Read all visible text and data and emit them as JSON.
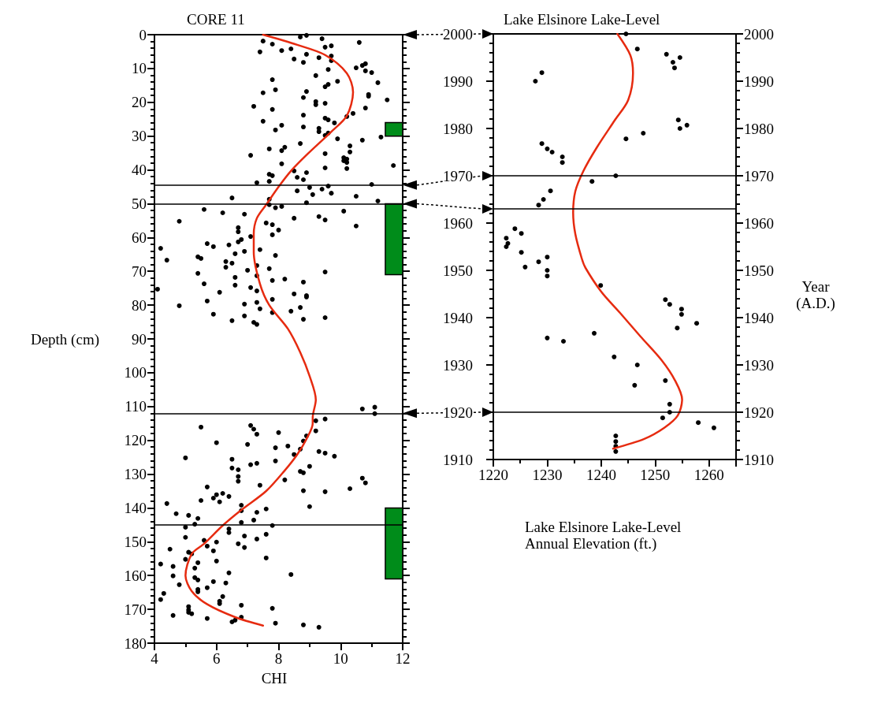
{
  "chart_data": [
    {
      "type": "scatter",
      "title": "CORE 11",
      "xlabel": "CHI",
      "ylabel": "Depth (cm)",
      "xlim": [
        4,
        12
      ],
      "xticks": [
        4,
        6,
        8,
        10,
        12
      ],
      "ylim": [
        180,
        0
      ],
      "yticks": [
        0,
        10,
        20,
        30,
        40,
        50,
        60,
        70,
        80,
        90,
        100,
        110,
        120,
        130,
        140,
        150,
        160,
        170,
        180
      ],
      "marker": "circle",
      "series": [
        {
          "type": "scatter",
          "color": "#000000",
          "x": [
            8.7,
            8.9,
            9.4,
            10.6,
            7.5,
            7.8,
            9.5,
            9.7,
            8.1,
            8.4,
            7.4,
            8.9,
            9.7,
            9.3,
            8.5,
            8.8,
            9.7,
            9.6,
            10.5,
            10.7,
            10.8,
            10.8,
            11.0,
            9.2,
            9.9,
            11.2,
            7.8,
            9.6,
            9.5,
            7.9,
            8.9,
            7.5,
            10.9,
            10.9,
            8.8,
            11.5,
            9.2,
            9.2,
            9.5,
            7.2,
            10.8,
            7.8,
            10.4,
            8.8,
            10.2,
            9.5,
            9.6,
            7.5,
            8.1,
            9.8,
            8.8,
            7.9,
            9.3,
            9.3,
            9.5,
            9.6,
            9.9,
            10.7,
            11.3,
            8.7,
            10.3,
            8.2,
            7.7,
            8.1,
            10.3,
            9.5,
            7.1,
            10.1,
            10.2,
            10.1,
            10.2,
            8.1,
            9.5,
            10.2,
            11.7,
            8.5,
            8.9,
            7.7,
            7.8,
            8.6,
            8.8,
            7.7,
            7.3,
            11.0,
            9.6,
            8.6,
            9.0,
            9.4,
            9.7,
            9.1,
            6.5,
            10.5,
            7.7,
            11.2,
            8.9,
            7.7,
            7.9,
            8.1,
            5.6,
            6.2,
            6.9,
            10.1,
            8.5,
            9.3,
            9.5,
            4.8,
            7.6,
            7.8,
            10.5,
            6.7,
            6.7,
            8.0,
            7.8,
            7.1,
            5.7,
            5.9,
            6.4,
            6.7,
            6.8,
            4.2,
            6.9,
            7.4,
            4.4,
            5.4,
            5.5,
            6.6,
            7.9,
            6.3,
            6.5,
            6.3,
            7.0,
            7.3,
            7.7,
            5.4,
            7.3,
            6.6,
            9.5,
            7.8,
            8.2,
            8.8,
            5.6,
            6.6,
            7.1,
            4.1,
            6.1,
            7.3,
            8.5,
            8.9,
            8.9,
            7.8,
            5.7,
            7.3,
            4.8,
            6.9,
            7.4,
            8.7,
            8.4,
            7.8,
            5.9,
            6.9,
            8.8,
            9.5,
            6.5,
            7.2,
            7.3,
            10.7,
            11.1,
            11.1,
            9.2,
            9.5,
            5.5,
            7.1,
            7.2,
            9.2,
            7.3,
            8.0,
            8.9,
            8.8,
            6.0,
            7.0,
            7.9,
            8.3,
            8.7,
            9.3,
            9.5,
            9.8,
            8.5,
            5.0,
            6.5,
            7.1,
            7.3,
            7.9,
            6.5,
            6.7,
            9.0,
            8.7,
            8.8,
            6.7,
            6.7,
            8.2,
            10.7,
            10.8,
            5.7,
            7.4,
            10.3,
            8.8,
            9.5,
            6.0,
            6.2,
            6.4,
            5.9,
            6.1,
            5.5,
            4.4,
            6.8,
            6.8,
            4.7,
            5.1,
            5.4,
            9.0,
            7.6,
            7.3,
            7.2,
            6.8,
            5.3,
            5.0,
            7.8,
            6.4,
            6.4,
            7.6,
            6.9,
            5.0,
            7.3,
            5.6,
            6.0,
            5.7,
            6.7,
            6.9,
            4.5,
            5.9,
            5.1,
            5.2,
            7.6,
            5.0,
            6.0,
            5.4,
            4.2,
            4.6,
            5.3,
            6.4,
            8.4,
            4.6,
            5.3,
            5.4,
            5.9,
            6.3,
            4.8,
            5.7,
            5.4,
            5.4,
            4.3,
            6.2,
            4.2,
            6.1,
            6.1,
            6.8,
            5.1,
            7.8,
            5.1,
            5.1,
            5.2,
            4.6,
            6.8,
            5.7,
            6.6,
            6.5,
            7.9,
            8.8,
            9.3
          ],
          "values": [
            0.7,
            0.2,
            1.2,
            2.3,
            1.9,
            2.8,
            3.7,
            3.3,
            4.7,
            4.2,
            5.1,
            5.8,
            6.3,
            6.8,
            7.2,
            8.2,
            7.7,
            10.3,
            9.8,
            9.1,
            8.6,
            10.7,
            11.2,
            12.1,
            13.8,
            14.2,
            13.3,
            14.7,
            15.4,
            16.3,
            16.8,
            17.2,
            17.7,
            18.2,
            18.6,
            19.3,
            19.8,
            20.7,
            20.3,
            21.2,
            21.7,
            22.1,
            23.3,
            23.8,
            24.2,
            24.7,
            25.2,
            25.6,
            26.8,
            26.1,
            27.3,
            28.2,
            27.7,
            28.7,
            29.8,
            29.1,
            30.8,
            31.2,
            30.3,
            32.2,
            32.9,
            33.3,
            33.8,
            34.3,
            34.7,
            35.2,
            35.7,
            36.4,
            36.8,
            37.3,
            37.8,
            38.2,
            39.4,
            39.6,
            38.7,
            40.3,
            40.8,
            41.3,
            41.7,
            42.2,
            42.9,
            43.4,
            43.8,
            44.3,
            44.8,
            46.2,
            45.2,
            45.7,
            46.9,
            47.3,
            48.3,
            47.8,
            48.7,
            49.2,
            49.7,
            50.3,
            51.2,
            50.8,
            51.7,
            52.7,
            53.1,
            52.2,
            54.3,
            53.8,
            54.8,
            55.2,
            55.7,
            56.2,
            56.6,
            57.1,
            58.3,
            57.8,
            59.2,
            59.7,
            61.8,
            62.7,
            62.2,
            61.3,
            60.6,
            63.2,
            64.1,
            63.6,
            66.7,
            65.7,
            66.2,
            64.8,
            65.3,
            67.1,
            67.6,
            68.8,
            69.7,
            68.3,
            69.2,
            70.6,
            71.3,
            71.8,
            70.2,
            72.7,
            72.3,
            73.2,
            73.7,
            74.1,
            74.8,
            75.3,
            76.2,
            75.8,
            76.7,
            77.2,
            77.6,
            78.3,
            78.8,
            79.2,
            80.2,
            79.7,
            81.1,
            80.7,
            81.8,
            82.2,
            82.7,
            83.2,
            84.2,
            83.7,
            84.6,
            85.1,
            85.7,
            110.7,
            110.2,
            112.1,
            114.2,
            113.7,
            116.1,
            115.6,
            116.7,
            117.2,
            118.2,
            117.7,
            118.7,
            120.2,
            120.7,
            121.2,
            122.2,
            121.7,
            122.6,
            123.3,
            123.8,
            124.7,
            124.2,
            125.2,
            125.6,
            127.2,
            126.8,
            126.1,
            128.2,
            128.7,
            127.7,
            129.2,
            129.6,
            130.7,
            132.1,
            131.7,
            131.2,
            132.6,
            133.8,
            133.3,
            134.3,
            134.9,
            135.2,
            136.1,
            135.7,
            136.6,
            137.1,
            138.2,
            137.8,
            138.7,
            139.2,
            140.8,
            141.7,
            142.2,
            143.1,
            139.6,
            140.3,
            141.3,
            143.6,
            144.3,
            144.8,
            145.7,
            145.2,
            146.2,
            147.3,
            147.8,
            148.3,
            148.7,
            149.2,
            149.6,
            150.1,
            151.3,
            150.6,
            151.7,
            152.2,
            152.7,
            153.1,
            153.6,
            154.8,
            155.2,
            155.7,
            156.2,
            156.6,
            157.3,
            157.8,
            159.2,
            159.7,
            160.1,
            160.6,
            161.3,
            161.8,
            162.2,
            162.7,
            163.6,
            164.1,
            164.8,
            165.3,
            166.2,
            167.1,
            167.6,
            168.3,
            168.8,
            169.2,
            169.7,
            170.2,
            170.9,
            171.3,
            171.8,
            172.3,
            172.7,
            173.2,
            173.7,
            174.1,
            174.6,
            175.3
          ]
        },
        {
          "type": "line",
          "color": "#e62b10",
          "marker": "none",
          "x": [
            7.5,
            8.6,
            9.5,
            10.2,
            10.4,
            10.2,
            9.7,
            8.9,
            8.4,
            8.0,
            7.6,
            7.3,
            7.2,
            7.2,
            7.4,
            7.7,
            8.3,
            8.7,
            9.0,
            9.2,
            9.1,
            9.1,
            8.9,
            8.6,
            8.2,
            7.6,
            6.8,
            6.2,
            5.6,
            5.2,
            5.0,
            5.2,
            5.7,
            6.6,
            7.5
          ],
          "values": [
            0,
            3,
            6,
            11.4,
            17,
            24,
            28.7,
            35.6,
            40.3,
            45,
            50.3,
            54.3,
            59,
            64.3,
            73.7,
            80,
            87,
            94,
            101,
            108,
            113.3,
            115,
            119.6,
            124.2,
            128.9,
            135,
            140.6,
            145.2,
            150.6,
            153.6,
            160,
            164.6,
            168.5,
            172.3,
            174.8
          ]
        }
      ],
      "ref_lines": [
        {
          "axis": "y",
          "value": 44.5
        },
        {
          "axis": "y",
          "value": 50
        },
        {
          "axis": "y",
          "value": 112
        },
        {
          "axis": "y",
          "value": 145
        }
      ],
      "bands": [
        {
          "axis": "y",
          "from": 26,
          "to": 30,
          "color": "#008c1a"
        },
        {
          "axis": "y",
          "from": 50,
          "to": 71,
          "color": "#008c1a"
        },
        {
          "axis": "y",
          "from": 140,
          "to": 161,
          "color": "#008c1a"
        }
      ]
    },
    {
      "type": "scatter",
      "title": "Lake Elsinore Lake-Level",
      "xlabel": "Lake Elsinore Lake-Level Annual Elevation (ft.)",
      "y2label": "Year (A.D.)",
      "xlim": [
        1220,
        1265
      ],
      "xticks": [
        1220,
        1230,
        1240,
        1250,
        1260
      ],
      "ylim": [
        1910,
        2000
      ],
      "yticks": [
        1910,
        1920,
        1930,
        1940,
        1950,
        1960,
        1970,
        1980,
        1990,
        2000
      ],
      "y2lim": [
        1910,
        2000
      ],
      "y2ticks": [
        1910,
        1920,
        1930,
        1940,
        1950,
        1960,
        1970,
        1980,
        1990,
        2000
      ],
      "marker": "circle",
      "series": [
        {
          "type": "scatter",
          "color": "#000000",
          "x": [
            1244.6,
            1246.7,
            1252.1,
            1254.6,
            1253.3,
            1253.6,
            1229,
            1227.8,
            1254.3,
            1254.6,
            1255.9,
            1247.8,
            1244.6,
            1229,
            1230,
            1230.9,
            1232.8,
            1232.8,
            1242.7,
            1238.3,
            1230.6,
            1229.3,
            1228.4,
            1224,
            1225.2,
            1222.4,
            1222.7,
            1222.4,
            1225.2,
            1230,
            1228.4,
            1225.9,
            1230,
            1230,
            1239.9,
            1251.9,
            1252.7,
            1254.9,
            1254.9,
            1257.7,
            1254.1,
            1230,
            1233,
            1238.7,
            1242.4,
            1246.7,
            1251.9,
            1246.2,
            1252.7,
            1252.7,
            1251.4,
            1258,
            1260.9,
            1242.7,
            1242.7,
            1242.7,
            1242.7
          ],
          "values": [
            2000,
            1996.8,
            1995.7,
            1995,
            1994,
            1992.8,
            1991.8,
            1990,
            1981.8,
            1980,
            1980.7,
            1979,
            1977.8,
            1976.8,
            1975.7,
            1975,
            1974,
            1972.8,
            1970,
            1968.8,
            1966.8,
            1965,
            1963.8,
            1958.8,
            1957.8,
            1956.8,
            1955.7,
            1955,
            1953.8,
            1952.8,
            1951.8,
            1950.7,
            1950,
            1948.8,
            1946.8,
            1943.8,
            1942.8,
            1941.8,
            1940.7,
            1938.8,
            1937.8,
            1935.7,
            1935,
            1936.7,
            1931.7,
            1930,
            1926.7,
            1925.7,
            1921.7,
            1920,
            1918.8,
            1917.8,
            1916.7,
            1915,
            1913.8,
            1912.8,
            1911.7
          ]
        },
        {
          "type": "line",
          "color": "#e62b10",
          "marker": "none",
          "x": [
            1243,
            1245.4,
            1245.9,
            1245,
            1242.5,
            1239.2,
            1236.7,
            1235.2,
            1234.8,
            1235.2,
            1236.4,
            1237.1,
            1240,
            1243.5,
            1247.3,
            1251.2,
            1253.7,
            1255,
            1254.2,
            1251.7,
            1247.9,
            1242.2
          ],
          "values": [
            2000,
            1995.5,
            1991.7,
            1986,
            1981.7,
            1976,
            1971,
            1966.7,
            1962.2,
            1957.7,
            1952.5,
            1950.5,
            1945.5,
            1941,
            1936,
            1931,
            1926.7,
            1922.7,
            1919.3,
            1916.7,
            1914.3,
            1912.3
          ]
        }
      ],
      "ref_lines": [
        {
          "axis": "y",
          "value": 1970
        },
        {
          "axis": "y",
          "value": 1963
        },
        {
          "axis": "y",
          "value": 1920
        }
      ]
    }
  ]
}
